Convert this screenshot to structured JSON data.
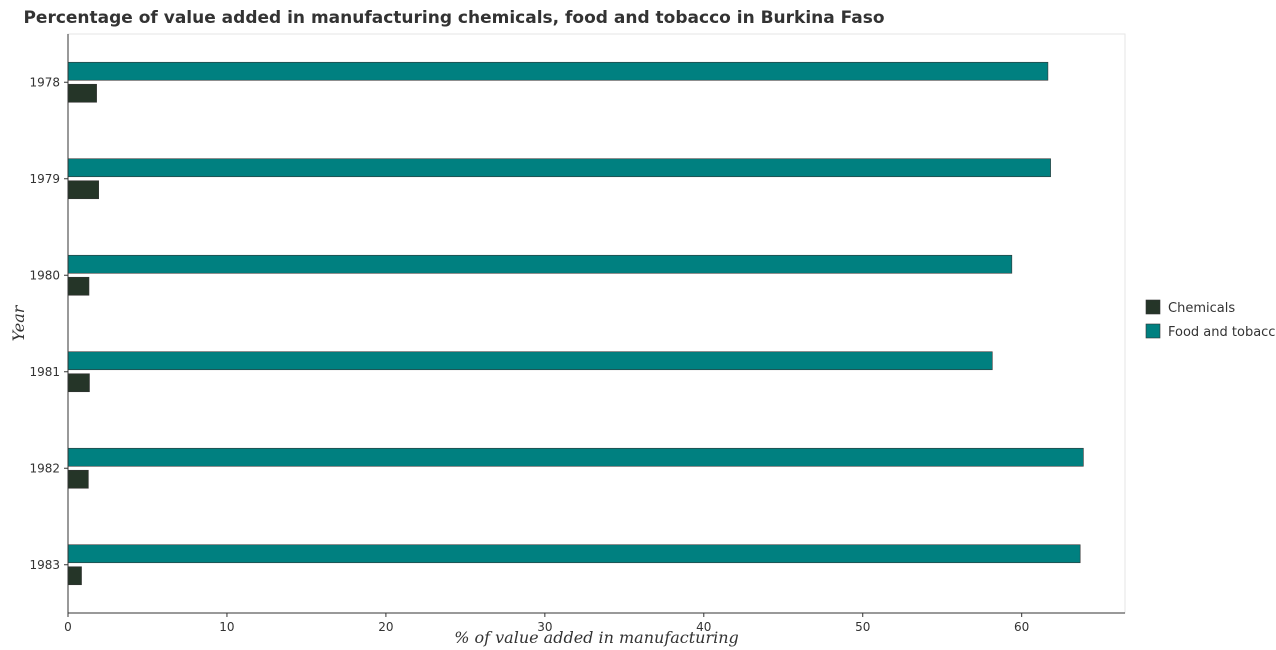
{
  "chart_data": {
    "type": "bar",
    "orientation": "horizontal",
    "title": "Percentage of value added in manufacturing chemicals, food and tobacco in Burkina Faso",
    "xlabel": "% of value added in manufacturing",
    "ylabel": "Year",
    "categories": [
      "1978",
      "1979",
      "1980",
      "1981",
      "1982",
      "1983"
    ],
    "series": [
      {
        "name": "Chemicals",
        "color": "#253528",
        "values": [
          1.8,
          1.93,
          1.32,
          1.35,
          1.28,
          0.85
        ]
      },
      {
        "name": "Food and tobacco",
        "color": "#008080",
        "values": [
          61.65,
          61.82,
          59.38,
          58.15,
          63.88,
          63.68
        ]
      }
    ],
    "xlim": [
      0,
      66.5
    ],
    "xticks": [
      0,
      10,
      20,
      30,
      40,
      50,
      60
    ],
    "grid": false,
    "legend": {
      "position": "right"
    }
  }
}
